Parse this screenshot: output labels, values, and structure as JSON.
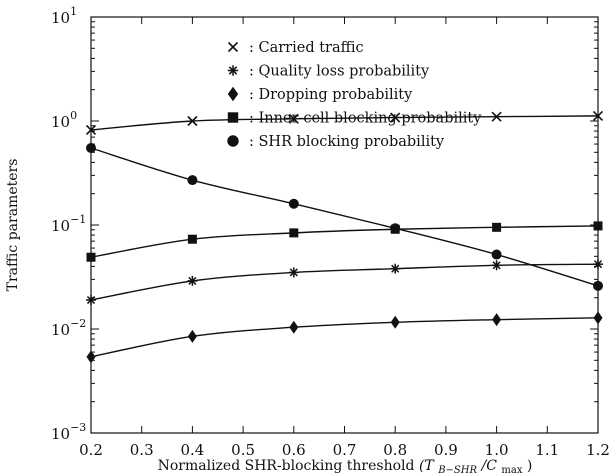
{
  "chart_data": {
    "type": "line",
    "xlabel": "Normalized SHR-blocking threshold",
    "xlabel_math": "(T",
    "xlabel_sub": "B−SHR",
    "xlabel_mid": "/C",
    "xlabel_sub2": "max",
    "xlabel_end": ")",
    "ylabel": "Traffic parameters",
    "x_scale": "linear",
    "y_scale": "log",
    "xlim": [
      0.2,
      1.2
    ],
    "ylim": [
      0.001,
      10
    ],
    "x_ticks": [
      "0.2",
      "0.3",
      "0.4",
      "0.5",
      "0.6",
      "0.7",
      "0.8",
      "0.9",
      "1.0",
      "1.1",
      "1.2"
    ],
    "y_ticks": [
      {
        "value": 10,
        "base": "10",
        "exp": "1"
      },
      {
        "value": 1,
        "base": "10",
        "exp": "0"
      },
      {
        "value": 0.1,
        "base": "10",
        "exp": "−1"
      },
      {
        "value": 0.01,
        "base": "10",
        "exp": "−2"
      },
      {
        "value": 0.001,
        "base": "10",
        "exp": "−3"
      }
    ],
    "grid": false,
    "legend_position": "top-right",
    "series": [
      {
        "name": "Carried traffic",
        "marker": "x",
        "x": [
          0.2,
          0.4,
          0.6,
          0.8,
          1.0,
          1.2
        ],
        "y": [
          0.82,
          1.0,
          1.05,
          1.08,
          1.1,
          1.12
        ]
      },
      {
        "name": "Quality loss probability",
        "marker": "asterisk",
        "x": [
          0.2,
          0.4,
          0.6,
          0.8,
          1.0,
          1.2
        ],
        "y": [
          0.019,
          0.029,
          0.035,
          0.038,
          0.041,
          0.042
        ]
      },
      {
        "name": "Dropping probability",
        "marker": "diamond",
        "x": [
          0.2,
          0.4,
          0.6,
          0.8,
          1.0,
          1.2
        ],
        "y": [
          0.0054,
          0.0085,
          0.0104,
          0.0116,
          0.0123,
          0.0128
        ]
      },
      {
        "name": "Inner-cell blocking probability",
        "marker": "square",
        "x": [
          0.2,
          0.4,
          0.6,
          0.8,
          1.0,
          1.2
        ],
        "y": [
          0.049,
          0.073,
          0.084,
          0.091,
          0.095,
          0.098
        ]
      },
      {
        "name": "SHR blocking probability",
        "marker": "circle",
        "x": [
          0.2,
          0.4,
          0.6,
          0.8,
          1.0,
          1.2
        ],
        "y": [
          0.55,
          0.27,
          0.16,
          0.093,
          0.052,
          0.026
        ]
      }
    ],
    "legend_separator": ":"
  }
}
